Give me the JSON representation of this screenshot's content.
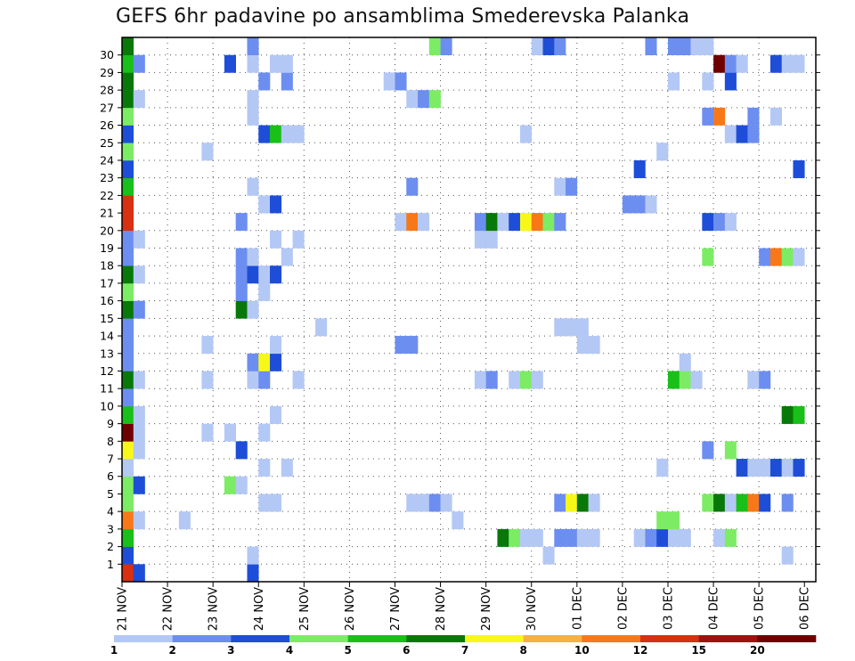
{
  "title": "GEFS 6hr padavine po ansamblima Smederevska Palanka",
  "chart_data": {
    "type": "heatmap",
    "title": "GEFS 6hr padavine po ansamblima Smederevska Palanka",
    "xlabel": "",
    "ylabel": "",
    "x_ticks": [
      "21 NOV",
      "22 NOV",
      "23 NOV",
      "24 NOV",
      "25 NOV",
      "26 NOV",
      "27 NOV",
      "28 NOV",
      "29 NOV",
      "30 NOV",
      "01 DEC",
      "02 DEC",
      "03 DEC",
      "04 DEC",
      "05 DEC",
      "06 DEC"
    ],
    "y_ticks": [
      1,
      2,
      3,
      4,
      5,
      6,
      7,
      8,
      9,
      10,
      11,
      12,
      13,
      14,
      15,
      16,
      17,
      18,
      19,
      20,
      21,
      22,
      23,
      24,
      25,
      26,
      27,
      28,
      29,
      30
    ],
    "n_steps": 61,
    "grid": true,
    "colorbar": {
      "labels": [
        "1",
        "2",
        "3",
        "4",
        "5",
        "6",
        "7",
        "8",
        "10",
        "12",
        "15",
        "20"
      ],
      "colors": [
        "#b4c8f5",
        "#6c8ef0",
        "#1e4ed8",
        "#7cec64",
        "#18c018",
        "#087808",
        "#f8f818",
        "#f8b040",
        "#f87818",
        "#d83010",
        "#a01010",
        "#700000"
      ]
    },
    "cells": [
      [
        0,
        0,
        10
      ],
      [
        1,
        0,
        3
      ],
      [
        11,
        0,
        3
      ],
      [
        0,
        1,
        3
      ],
      [
        11,
        1,
        1
      ],
      [
        37,
        1,
        1
      ],
      [
        58,
        1,
        1
      ],
      [
        0,
        2,
        5
      ],
      [
        33,
        2,
        6
      ],
      [
        34,
        2,
        4
      ],
      [
        35,
        2,
        1
      ],
      [
        36,
        2,
        1
      ],
      [
        38,
        2,
        2
      ],
      [
        39,
        2,
        2
      ],
      [
        40,
        2,
        1
      ],
      [
        41,
        2,
        1
      ],
      [
        45,
        2,
        1
      ],
      [
        46,
        2,
        2
      ],
      [
        47,
        2,
        3
      ],
      [
        48,
        2,
        1
      ],
      [
        49,
        2,
        1
      ],
      [
        52,
        2,
        1
      ],
      [
        53,
        2,
        4
      ],
      [
        0,
        3,
        9
      ],
      [
        1,
        3,
        1
      ],
      [
        5,
        3,
        1
      ],
      [
        29,
        3,
        1
      ],
      [
        47,
        3,
        4
      ],
      [
        48,
        3,
        4
      ],
      [
        0,
        4,
        4
      ],
      [
        12,
        4,
        1
      ],
      [
        13,
        4,
        1
      ],
      [
        25,
        4,
        1
      ],
      [
        26,
        4,
        1
      ],
      [
        27,
        4,
        2
      ],
      [
        28,
        4,
        1
      ],
      [
        38,
        4,
        2
      ],
      [
        39,
        4,
        7
      ],
      [
        40,
        4,
        6
      ],
      [
        41,
        4,
        1
      ],
      [
        51,
        4,
        4
      ],
      [
        52,
        4,
        6
      ],
      [
        53,
        4,
        1
      ],
      [
        54,
        4,
        5
      ],
      [
        55,
        4,
        9
      ],
      [
        56,
        4,
        3
      ],
      [
        58,
        4,
        2
      ],
      [
        0,
        5,
        4
      ],
      [
        1,
        5,
        3
      ],
      [
        9,
        5,
        4
      ],
      [
        10,
        5,
        1
      ],
      [
        0,
        6,
        1
      ],
      [
        12,
        6,
        1
      ],
      [
        14,
        6,
        1
      ],
      [
        47,
        6,
        1
      ],
      [
        54,
        6,
        3
      ],
      [
        55,
        6,
        1
      ],
      [
        56,
        6,
        1
      ],
      [
        57,
        6,
        3
      ],
      [
        58,
        6,
        1
      ],
      [
        59,
        6,
        3
      ],
      [
        0,
        7,
        7
      ],
      [
        1,
        7,
        1
      ],
      [
        10,
        7,
        3
      ],
      [
        51,
        7,
        2
      ],
      [
        53,
        7,
        4
      ],
      [
        0,
        8,
        12
      ],
      [
        1,
        8,
        1
      ],
      [
        7,
        8,
        1
      ],
      [
        9,
        8,
        1
      ],
      [
        12,
        8,
        1
      ],
      [
        0,
        9,
        5
      ],
      [
        1,
        9,
        1
      ],
      [
        13,
        9,
        1
      ],
      [
        58,
        9,
        6
      ],
      [
        59,
        9,
        5
      ],
      [
        0,
        10,
        2
      ],
      [
        0,
        11,
        6
      ],
      [
        1,
        11,
        1
      ],
      [
        7,
        11,
        1
      ],
      [
        11,
        11,
        1
      ],
      [
        12,
        11,
        2
      ],
      [
        15,
        11,
        1
      ],
      [
        31,
        11,
        1
      ],
      [
        32,
        11,
        2
      ],
      [
        34,
        11,
        1
      ],
      [
        35,
        11,
        4
      ],
      [
        36,
        11,
        1
      ],
      [
        48,
        11,
        5
      ],
      [
        49,
        11,
        4
      ],
      [
        50,
        11,
        1
      ],
      [
        55,
        11,
        1
      ],
      [
        56,
        11,
        2
      ],
      [
        0,
        12,
        2
      ],
      [
        11,
        12,
        2
      ],
      [
        12,
        12,
        7
      ],
      [
        13,
        12,
        3
      ],
      [
        49,
        12,
        1
      ],
      [
        0,
        13,
        2
      ],
      [
        7,
        13,
        1
      ],
      [
        13,
        13,
        1
      ],
      [
        24,
        13,
        2
      ],
      [
        25,
        13,
        2
      ],
      [
        40,
        13,
        1
      ],
      [
        41,
        13,
        1
      ],
      [
        0,
        14,
        2
      ],
      [
        17,
        14,
        1
      ],
      [
        38,
        14,
        1
      ],
      [
        39,
        14,
        1
      ],
      [
        40,
        14,
        1
      ],
      [
        0,
        15,
        6
      ],
      [
        1,
        15,
        2
      ],
      [
        10,
        15,
        6
      ],
      [
        11,
        15,
        1
      ],
      [
        0,
        16,
        4
      ],
      [
        10,
        16,
        2
      ],
      [
        12,
        16,
        1
      ],
      [
        0,
        17,
        6
      ],
      [
        1,
        17,
        1
      ],
      [
        10,
        17,
        2
      ],
      [
        11,
        17,
        3
      ],
      [
        12,
        17,
        1
      ],
      [
        13,
        17,
        3
      ],
      [
        0,
        18,
        2
      ],
      [
        10,
        18,
        2
      ],
      [
        11,
        18,
        1
      ],
      [
        14,
        18,
        1
      ],
      [
        51,
        18,
        4
      ],
      [
        56,
        18,
        2
      ],
      [
        57,
        18,
        9
      ],
      [
        58,
        18,
        4
      ],
      [
        59,
        18,
        1
      ],
      [
        0,
        19,
        2
      ],
      [
        1,
        19,
        1
      ],
      [
        13,
        19,
        1
      ],
      [
        15,
        19,
        1
      ],
      [
        31,
        19,
        1
      ],
      [
        32,
        19,
        1
      ],
      [
        0,
        20,
        10
      ],
      [
        10,
        20,
        2
      ],
      [
        24,
        20,
        1
      ],
      [
        25,
        20,
        9
      ],
      [
        26,
        20,
        1
      ],
      [
        31,
        20,
        2
      ],
      [
        32,
        20,
        6
      ],
      [
        33,
        20,
        1
      ],
      [
        34,
        20,
        3
      ],
      [
        35,
        20,
        7
      ],
      [
        36,
        20,
        9
      ],
      [
        37,
        20,
        4
      ],
      [
        38,
        20,
        2
      ],
      [
        51,
        20,
        3
      ],
      [
        52,
        20,
        2
      ],
      [
        53,
        20,
        1
      ],
      [
        0,
        21,
        10
      ],
      [
        12,
        21,
        1
      ],
      [
        13,
        21,
        3
      ],
      [
        44,
        21,
        2
      ],
      [
        45,
        21,
        2
      ],
      [
        46,
        21,
        1
      ],
      [
        0,
        22,
        5
      ],
      [
        11,
        22,
        1
      ],
      [
        25,
        22,
        2
      ],
      [
        38,
        22,
        1
      ],
      [
        39,
        22,
        2
      ],
      [
        0,
        23,
        3
      ],
      [
        45,
        23,
        3
      ],
      [
        59,
        23,
        3
      ],
      [
        0,
        24,
        4
      ],
      [
        7,
        24,
        1
      ],
      [
        47,
        24,
        1
      ],
      [
        0,
        25,
        3
      ],
      [
        12,
        25,
        3
      ],
      [
        13,
        25,
        5
      ],
      [
        14,
        25,
        1
      ],
      [
        15,
        25,
        1
      ],
      [
        35,
        25,
        1
      ],
      [
        53,
        25,
        1
      ],
      [
        54,
        25,
        3
      ],
      [
        55,
        25,
        2
      ],
      [
        0,
        26,
        4
      ],
      [
        11,
        26,
        1
      ],
      [
        51,
        26,
        2
      ],
      [
        52,
        26,
        9
      ],
      [
        55,
        26,
        2
      ],
      [
        57,
        26,
        1
      ],
      [
        0,
        27,
        6
      ],
      [
        1,
        27,
        1
      ],
      [
        11,
        27,
        1
      ],
      [
        25,
        27,
        1
      ],
      [
        26,
        27,
        2
      ],
      [
        27,
        27,
        4
      ],
      [
        0,
        28,
        6
      ],
      [
        12,
        28,
        2
      ],
      [
        14,
        28,
        2
      ],
      [
        23,
        28,
        1
      ],
      [
        24,
        28,
        2
      ],
      [
        48,
        28,
        1
      ],
      [
        51,
        28,
        1
      ],
      [
        53,
        28,
        3
      ],
      [
        0,
        29,
        5
      ],
      [
        1,
        29,
        2
      ],
      [
        9,
        29,
        3
      ],
      [
        11,
        29,
        1
      ],
      [
        13,
        29,
        1
      ],
      [
        14,
        29,
        1
      ],
      [
        52,
        29,
        12
      ],
      [
        53,
        29,
        2
      ],
      [
        54,
        29,
        1
      ],
      [
        57,
        29,
        3
      ],
      [
        58,
        29,
        1
      ],
      [
        59,
        29,
        1
      ],
      [
        0,
        30,
        6
      ],
      [
        11,
        30,
        2
      ],
      [
        27,
        30,
        4
      ],
      [
        28,
        30,
        2
      ],
      [
        36,
        30,
        1
      ],
      [
        37,
        30,
        3
      ],
      [
        38,
        30,
        2
      ],
      [
        46,
        30,
        2
      ],
      [
        48,
        30,
        2
      ],
      [
        49,
        30,
        2
      ],
      [
        50,
        30,
        1
      ],
      [
        51,
        30,
        1
      ]
    ]
  }
}
